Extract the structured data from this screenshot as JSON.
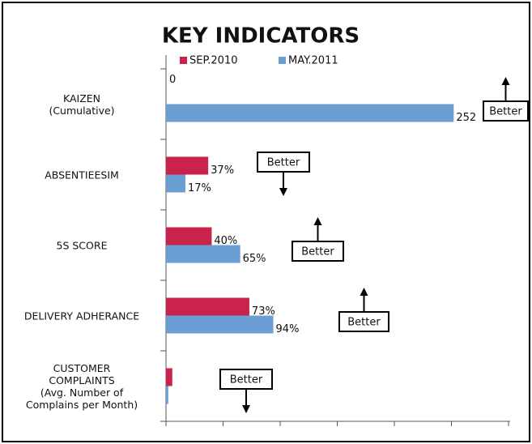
{
  "chart_data": {
    "type": "hbar",
    "title": "KEY INDICATORS",
    "categories": [
      "KAIZEN\n(Cumulative)",
      "ABSENTIEESIM",
      "5S SCORE",
      "DELIVERY ADHERANCE",
      "CUSTOMER\nCOMPLAINTS\n(Avg. Number of\nComplains per Month)"
    ],
    "series": [
      {
        "name": "SEP.2010",
        "color": "#c9234b",
        "values": [
          0,
          37,
          40,
          73,
          5.5
        ],
        "value_labels": [
          "0",
          "37%",
          "40%",
          "73%",
          null
        ]
      },
      {
        "name": "MAY.2011",
        "color": "#6b9fd3",
        "values": [
          252,
          17,
          65,
          94,
          2
        ],
        "value_labels": [
          "252",
          "17%",
          "65%",
          "94%",
          null
        ]
      }
    ],
    "xlim": [
      0,
      300
    ],
    "xticks": [
      0,
      50,
      100,
      150,
      200,
      250,
      300
    ],
    "annotations": [
      {
        "text": "Better",
        "direction": "up"
      },
      {
        "text": "Better",
        "direction": "down"
      },
      {
        "text": "Better",
        "direction": "up"
      },
      {
        "text": "Better",
        "direction": "up"
      },
      {
        "text": "Better",
        "direction": "down"
      }
    ]
  }
}
